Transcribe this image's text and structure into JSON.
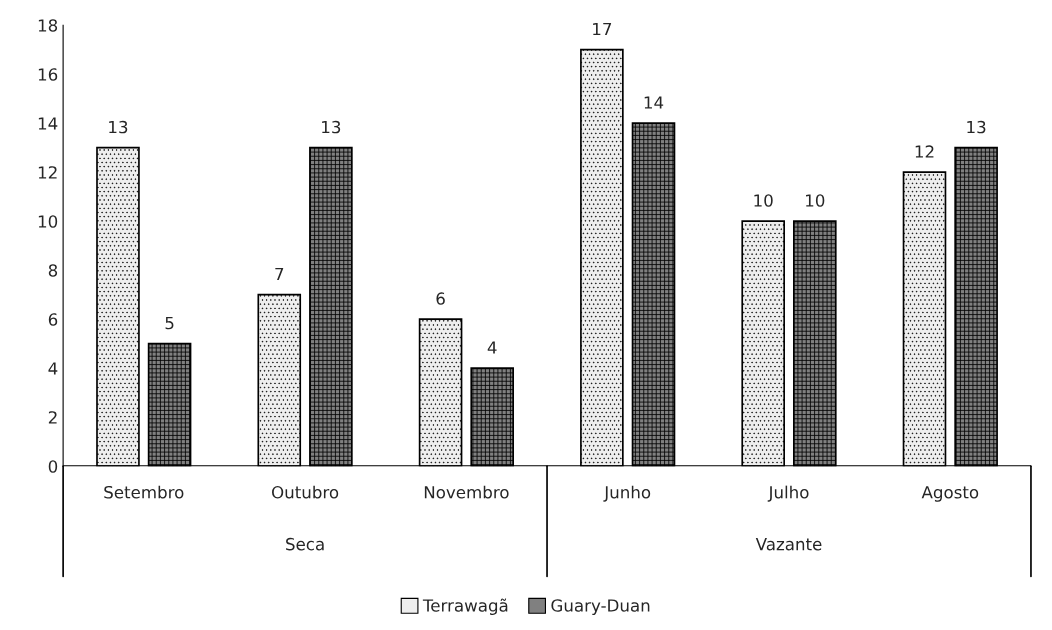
{
  "chart_data": {
    "type": "bar",
    "categories": [
      "Setembro",
      "Outubro",
      "Novembro",
      "Junho",
      "Julho",
      "Agosto"
    ],
    "series": [
      {
        "name": "Terrawagã",
        "color": "#eeeeee",
        "values": [
          13,
          7,
          6,
          17,
          10,
          12
        ]
      },
      {
        "name": "Guary-Duan",
        "color": "#808080",
        "values": [
          5,
          13,
          4,
          14,
          10,
          13
        ]
      }
    ],
    "annotations": [
      "Seca",
      "Vazante"
    ],
    "ylim": [
      0,
      18
    ],
    "yticks": [
      0,
      2,
      4,
      6,
      8,
      10,
      12,
      14,
      16,
      18
    ],
    "data_labels": true,
    "grid": false,
    "legend": "bottom"
  }
}
